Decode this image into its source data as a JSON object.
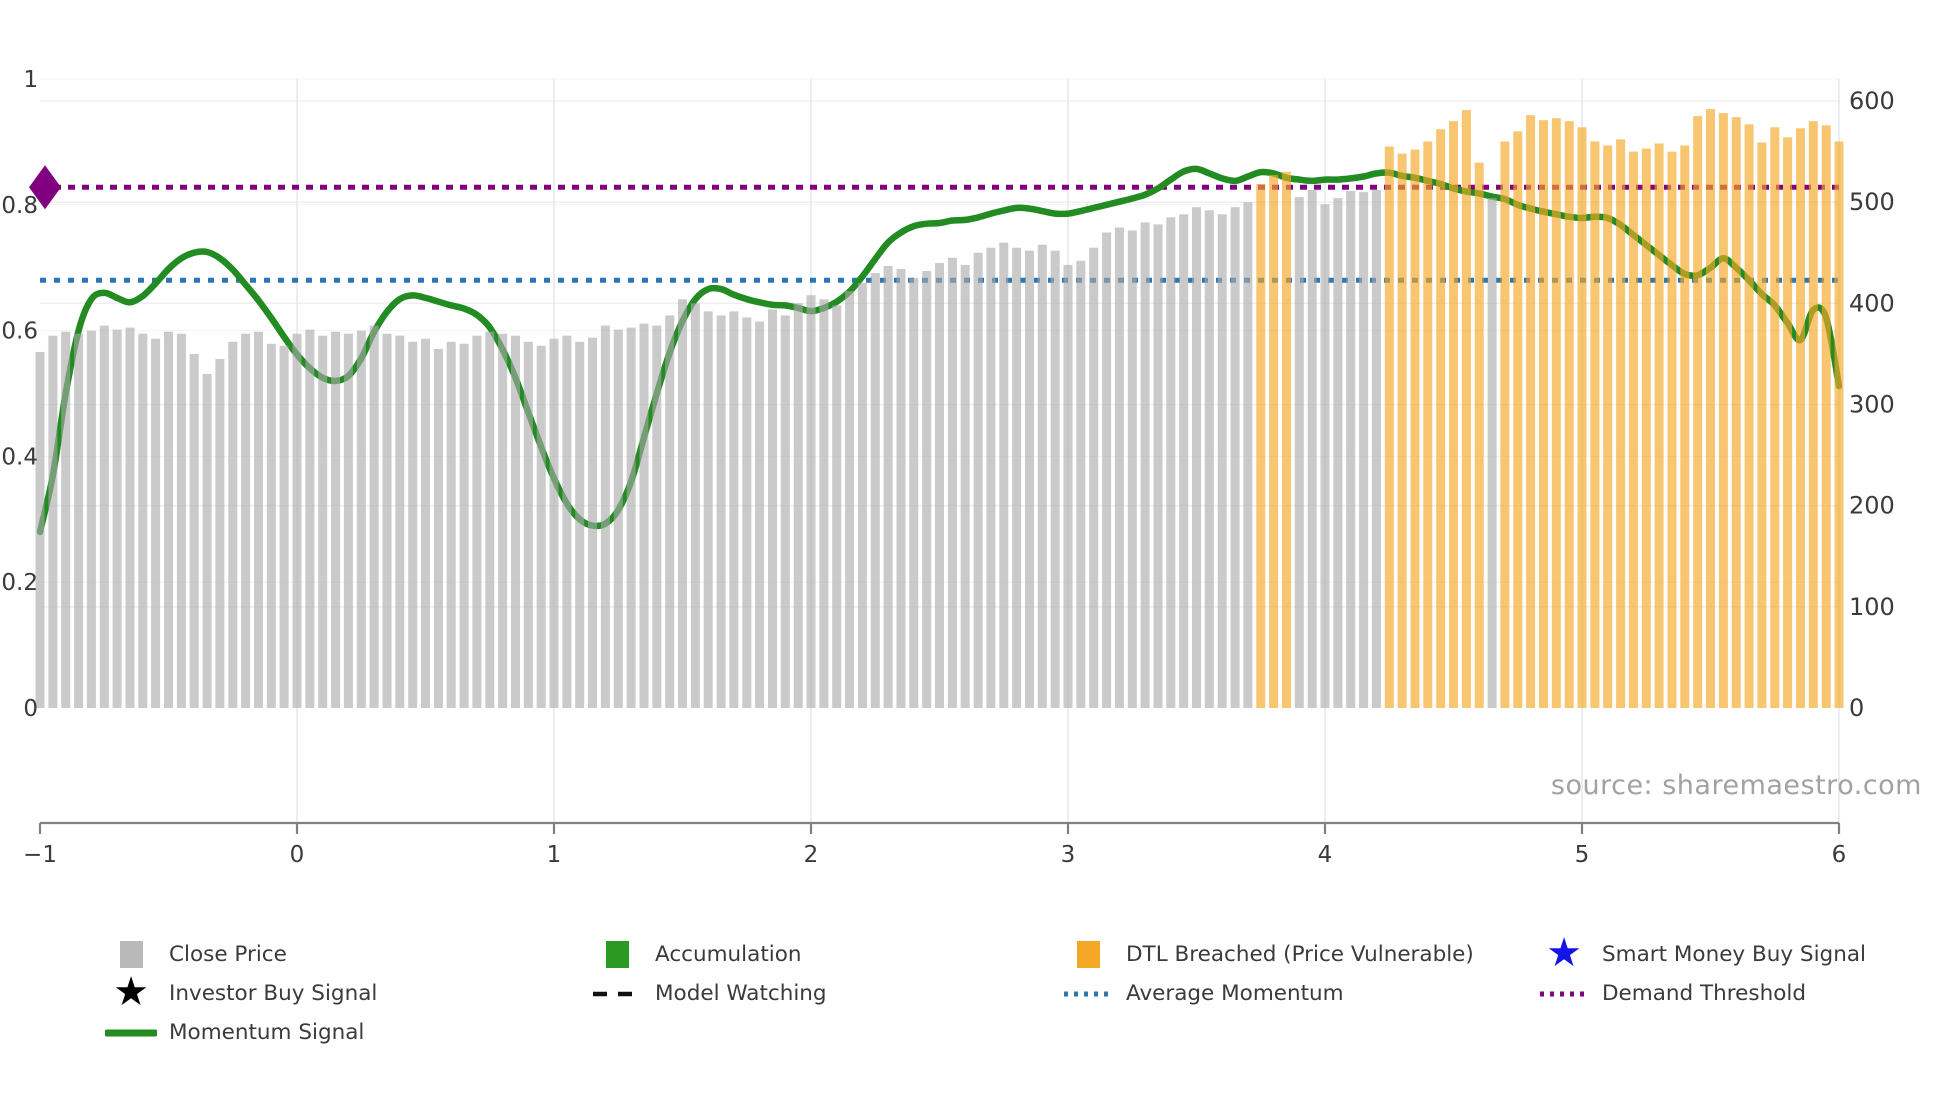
{
  "source_note": "source: sharemaestro.com",
  "colors": {
    "background": "#ffffff",
    "bar_normal": "#aaaaaa",
    "bar_normal_alpha": 0.62,
    "bar_dtl": "#f5a726",
    "bar_dtl_alpha": 0.66,
    "momentum_line": "#228b22",
    "average_momentum_line": "#2b77b4",
    "demand_threshold_line": "#800080",
    "accumulation": "#2a9a22",
    "investor_star": "#000000",
    "smart_money_star": "#1414e6",
    "axis_text": "#3a3a3a",
    "axis_spine": "#808080",
    "gridline": "#ededf2",
    "v_gridline": "#e3eaf2"
  },
  "chart_data": {
    "type": "bar+line",
    "title": "",
    "xlabel": "",
    "ylabel_left": "",
    "ylabel_right": "",
    "x_axis": {
      "min": -1,
      "max": 6,
      "tick_labels": [
        "−1",
        "0",
        "1",
        "2",
        "3",
        "4",
        "5",
        "6"
      ],
      "tick_values": [
        -1,
        0,
        1,
        2,
        3,
        4,
        5,
        6
      ]
    },
    "y_left_axis": {
      "min": 0,
      "max": 1,
      "tick_labels": [
        "0",
        "0.2",
        "0.4",
        "0.6",
        "0.8",
        "1"
      ],
      "tick_values": [
        0,
        0.2,
        0.4,
        0.6,
        0.8,
        1
      ]
    },
    "y_right_axis": {
      "min": 0,
      "max": 600,
      "tick_labels": [
        "0",
        "100",
        "200",
        "300",
        "400",
        "500",
        "600"
      ],
      "tick_values": [
        0,
        100,
        200,
        300,
        400,
        500,
        600
      ]
    },
    "grid": true,
    "legend_position": "bottom",
    "bars": {
      "name": "Close Price",
      "axis": "right",
      "x_start": -1.0,
      "x_step": 0.05,
      "values": [
        352,
        368,
        372,
        370,
        373,
        378,
        374,
        376,
        370,
        365,
        372,
        370,
        350,
        330,
        345,
        362,
        370,
        372,
        360,
        358,
        370,
        374,
        368,
        372,
        370,
        373,
        378,
        370,
        368,
        362,
        365,
        355,
        362,
        360,
        368,
        372,
        370,
        368,
        362,
        358,
        365,
        368,
        362,
        366,
        378,
        374,
        376,
        380,
        378,
        388,
        404,
        400,
        392,
        388,
        392,
        386,
        382,
        394,
        388,
        400,
        408,
        404,
        398,
        412,
        420,
        430,
        437,
        434,
        425,
        432,
        440,
        445,
        438,
        450,
        455,
        460,
        455,
        452,
        458,
        452,
        438,
        442,
        455,
        470,
        475,
        472,
        480,
        478,
        485,
        488,
        495,
        492,
        488,
        495,
        500,
        518,
        527,
        530,
        505,
        512,
        498,
        504,
        511,
        510,
        512,
        555,
        548,
        552,
        560,
        572,
        580,
        591,
        539,
        504,
        560,
        570,
        586,
        581,
        583,
        580,
        574,
        560,
        556,
        562,
        550,
        553,
        558,
        550,
        556,
        585,
        592,
        588,
        584,
        577,
        559,
        574,
        564,
        573,
        580,
        576,
        560
      ],
      "dtl_breached_ranges": [
        [
          3.75,
          3.85
        ],
        [
          4.25,
          4.6
        ],
        [
          4.7,
          6.0
        ]
      ]
    },
    "momentum": {
      "name": "Momentum Signal",
      "axis": "left",
      "x_start": -1.0,
      "x_step": 0.05,
      "values": [
        0.28,
        0.37,
        0.5,
        0.6,
        0.65,
        0.66,
        0.652,
        0.645,
        0.655,
        0.675,
        0.698,
        0.715,
        0.724,
        0.725,
        0.715,
        0.697,
        0.673,
        0.648,
        0.62,
        0.59,
        0.562,
        0.54,
        0.525,
        0.52,
        0.528,
        0.556,
        0.598,
        0.63,
        0.65,
        0.656,
        0.652,
        0.646,
        0.64,
        0.635,
        0.625,
        0.605,
        0.57,
        0.525,
        0.47,
        0.415,
        0.365,
        0.325,
        0.3,
        0.29,
        0.293,
        0.315,
        0.36,
        0.43,
        0.5,
        0.565,
        0.615,
        0.65,
        0.666,
        0.666,
        0.657,
        0.65,
        0.645,
        0.641,
        0.64,
        0.636,
        0.631,
        0.636,
        0.646,
        0.662,
        0.686,
        0.714,
        0.74,
        0.756,
        0.766,
        0.77,
        0.771,
        0.775,
        0.776,
        0.78,
        0.786,
        0.791,
        0.795,
        0.794,
        0.79,
        0.786,
        0.786,
        0.79,
        0.795,
        0.8,
        0.805,
        0.81,
        0.816,
        0.826,
        0.84,
        0.853,
        0.857,
        0.85,
        0.842,
        0.838,
        0.845,
        0.852,
        0.85,
        0.843,
        0.84,
        0.838,
        0.84,
        0.84,
        0.842,
        0.845,
        0.85,
        0.851,
        0.846,
        0.843,
        0.838,
        0.833,
        0.826,
        0.821,
        0.818,
        0.813,
        0.809,
        0.8,
        0.794,
        0.789,
        0.785,
        0.781,
        0.779,
        0.781,
        0.779,
        0.768,
        0.752,
        0.736,
        0.72,
        0.704,
        0.69,
        0.688,
        0.7,
        0.715,
        0.7,
        0.68,
        0.658,
        0.64,
        0.612,
        0.585,
        0.633,
        0.62,
        0.512
      ]
    },
    "average_momentum": {
      "name": "Average Momentum",
      "axis": "left",
      "value": 0.68
    },
    "demand_threshold": {
      "name": "Demand Threshold",
      "axis": "left",
      "value": 0.828,
      "marker": "left-diamond"
    }
  },
  "legend": {
    "columns": [
      {
        "items": [
          {
            "label": "Close Price",
            "swatch": "square",
            "color": "#b9b9b9",
            "name": "close-price"
          },
          {
            "label": "Investor Buy Signal",
            "swatch": "star",
            "color": "#000000",
            "name": "investor-buy-signal"
          },
          {
            "label": "Momentum Signal",
            "swatch": "line",
            "color": "#228b22",
            "name": "momentum-signal"
          }
        ]
      },
      {
        "items": [
          {
            "label": "Accumulation",
            "swatch": "square",
            "color": "#2a9a22",
            "name": "accumulation"
          },
          {
            "label": "Model Watching",
            "swatch": "dashed-line",
            "color": "#111111",
            "name": "model-watching"
          }
        ]
      },
      {
        "items": [
          {
            "label": "DTL Breached (Price Vulnerable)",
            "swatch": "square",
            "color": "#f5a726",
            "name": "dtl-breached"
          },
          {
            "label": "Average Momentum",
            "swatch": "dotted-line",
            "color": "#2b77b4",
            "name": "average-momentum"
          }
        ]
      },
      {
        "items": [
          {
            "label": "Smart Money Buy Signal",
            "swatch": "star",
            "color": "#1414e6",
            "name": "smart-money-buy-signal"
          },
          {
            "label": "Demand Threshold",
            "swatch": "dotted-line",
            "color": "#800080",
            "name": "demand-threshold"
          }
        ]
      }
    ]
  }
}
